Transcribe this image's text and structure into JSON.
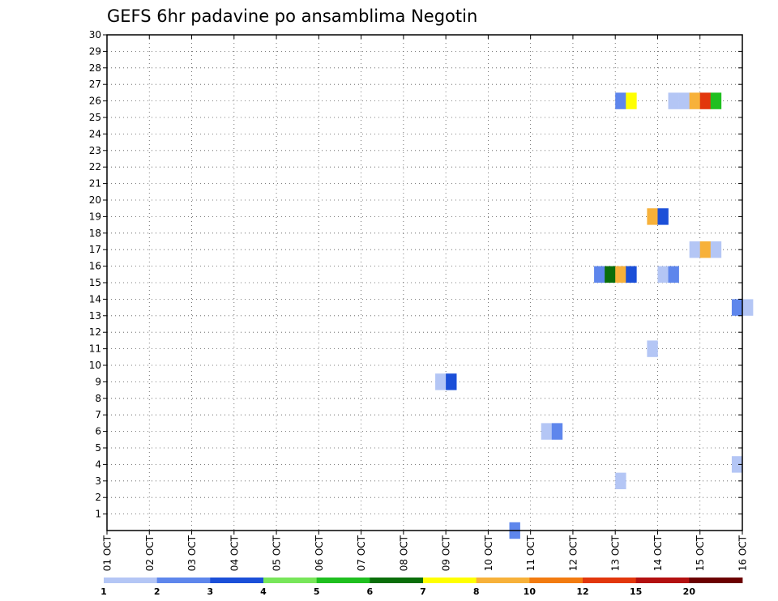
{
  "chart_data": {
    "type": "heatmap",
    "title": "GEFS 6hr padavine po ansamblima Negotin",
    "xlabel": "",
    "ylabel": "",
    "y_ticks": [
      "1",
      "2",
      "3",
      "4",
      "5",
      "6",
      "7",
      "8",
      "9",
      "10",
      "11",
      "12",
      "13",
      "14",
      "15",
      "16",
      "17",
      "18",
      "19",
      "20",
      "21",
      "22",
      "23",
      "24",
      "25",
      "26",
      "27",
      "28",
      "29",
      "30"
    ],
    "x_ticks": [
      "01 OCT",
      "02 OCT",
      "03 OCT",
      "04 OCT",
      "05 OCT",
      "06 OCT",
      "07 OCT",
      "08 OCT",
      "09 OCT",
      "10 OCT",
      "11 OCT",
      "12 OCT",
      "13 OCT",
      "14 OCT",
      "15 OCT",
      "16 OCT"
    ],
    "x_range_days": [
      0,
      15
    ],
    "member_range": [
      0,
      30
    ],
    "grid": true,
    "colorbar": {
      "placement": "bottom",
      "colors": [
        "#b4c6f5",
        "#5e86ec",
        "#1b4fd8",
        "#78e65a",
        "#1fbf1f",
        "#0a6e0a",
        "#ffff00",
        "#f7b13a",
        "#f27b10",
        "#e2370c",
        "#b31010",
        "#6b0000"
      ],
      "labels": [
        "1",
        "2",
        "3",
        "4",
        "5",
        "6",
        "7",
        "8",
        "10",
        "12",
        "15",
        "20"
      ]
    },
    "cells": [
      {
        "day": 9.5,
        "member": 0,
        "c": 1
      },
      {
        "day": 7.75,
        "member": 9,
        "c": 0
      },
      {
        "day": 8.0,
        "member": 9,
        "c": 2
      },
      {
        "day": 10.25,
        "member": 6,
        "c": 0
      },
      {
        "day": 10.5,
        "member": 6,
        "c": 1
      },
      {
        "day": 12.0,
        "member": 3,
        "c": 0
      },
      {
        "day": 14.75,
        "member": 4,
        "c": 0
      },
      {
        "day": 12.75,
        "member": 11,
        "c": 0
      },
      {
        "day": 14.75,
        "member": 13.5,
        "c": 1
      },
      {
        "day": 15.0,
        "member": 13.5,
        "c": 0
      },
      {
        "day": 11.5,
        "member": 15.5,
        "c": 1
      },
      {
        "day": 11.75,
        "member": 15.5,
        "c": 5
      },
      {
        "day": 12.0,
        "member": 15.5,
        "c": 7
      },
      {
        "day": 12.25,
        "member": 15.5,
        "c": 2
      },
      {
        "day": 13.0,
        "member": 15.5,
        "c": 0
      },
      {
        "day": 13.25,
        "member": 15.5,
        "c": 1
      },
      {
        "day": 13.75,
        "member": 17,
        "c": 0
      },
      {
        "day": 14.0,
        "member": 17,
        "c": 7
      },
      {
        "day": 14.25,
        "member": 17,
        "c": 0
      },
      {
        "day": 12.75,
        "member": 19,
        "c": 7
      },
      {
        "day": 13.0,
        "member": 19,
        "c": 2
      },
      {
        "day": 12.0,
        "member": 26,
        "c": 1
      },
      {
        "day": 12.25,
        "member": 26,
        "c": 6
      },
      {
        "day": 13.25,
        "member": 26,
        "c": 0
      },
      {
        "day": 13.5,
        "member": 26,
        "c": 0
      },
      {
        "day": 13.75,
        "member": 26,
        "c": 7
      },
      {
        "day": 14.0,
        "member": 26,
        "c": 9
      },
      {
        "day": 14.25,
        "member": 26,
        "c": 4
      }
    ]
  }
}
